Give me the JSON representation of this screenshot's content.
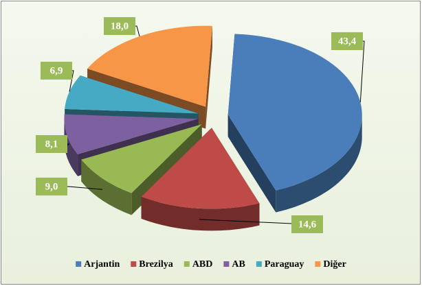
{
  "chart_data": {
    "type": "pie",
    "categories": [
      "Arjantin",
      "Brezilya",
      "ABD",
      "AB",
      "Paraguay",
      "Diğer"
    ],
    "values": [
      43.4,
      14.6,
      9.0,
      8.1,
      6.9,
      18.0
    ],
    "value_labels": [
      "43,4",
      "14,6",
      "9,0",
      "8,1",
      "6,9",
      "18,0"
    ],
    "colors": [
      "#4a7ebb",
      "#be4b48",
      "#98b954",
      "#7d60a0",
      "#46aac5",
      "#f79646"
    ],
    "legend": "bottom"
  }
}
